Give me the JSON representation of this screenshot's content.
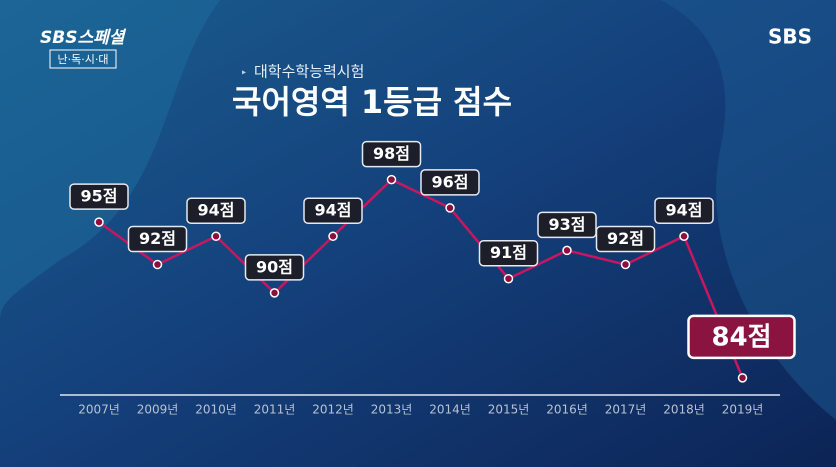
{
  "program": "SBS스페셜",
  "program_subtitle": "난·독·시·대",
  "channel": "SBS",
  "chart_data": {
    "type": "line",
    "subtitle": "대학수학능력시험",
    "title": "국어영역 1등급 점수",
    "categories": [
      "2007년",
      "2009년",
      "2010년",
      "2011년",
      "2012년",
      "2013년",
      "2014년",
      "2015년",
      "2016년",
      "2017년",
      "2018년",
      "2019년"
    ],
    "values": [
      95,
      92,
      94,
      90,
      94,
      98,
      96,
      91,
      93,
      92,
      94,
      84
    ],
    "value_labels": [
      "95점",
      "92점",
      "94점",
      "90점",
      "94점",
      "98점",
      "96점",
      "91점",
      "93점",
      "92점",
      "94점",
      "84점"
    ],
    "color": "#c8175e",
    "ylim": [
      83,
      108
    ]
  }
}
